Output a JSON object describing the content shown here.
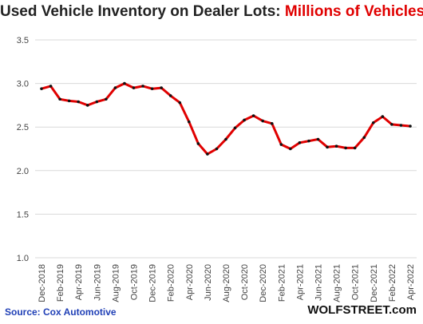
{
  "title_main": "Used Vehicle Inventory on Dealer Lots: ",
  "title_accent": "Millions  of Vehicles",
  "source": "Source: Cox Automotive",
  "brand": "WOLFSTREET.com",
  "colors": {
    "line": "#e00000",
    "marker": "#111111",
    "accent": "#e00000",
    "source": "#1f3fb6",
    "grid": "#d9d9d9"
  },
  "chart_data": {
    "type": "line",
    "title": "Used Vehicle Inventory on Dealer Lots: Millions  of Vehicles",
    "xlabel": "",
    "ylabel": "",
    "ylim": [
      1.0,
      3.5
    ],
    "yticks": [
      "1.0",
      "1.5",
      "2.0",
      "2.5",
      "3.0",
      "3.5"
    ],
    "grid": "horizontal",
    "x_tick_labels": [
      "Dec-2018",
      "Feb-2019",
      "Apr-2019",
      "Jun-2019",
      "Aug-2019",
      "Oct-2019",
      "Dec-2019",
      "Feb-2020",
      "Apr-2020",
      "Jun-2020",
      "Aug-2020",
      "Oct-2020",
      "Dec-2020",
      "Feb-2021",
      "Apr-2021",
      "Jun-2021",
      "Aug-2021",
      "Oct-2021",
      "Dec-2021",
      "Feb-2022",
      "Apr-2022"
    ],
    "x": [
      "Dec-2018",
      "Jan-2019",
      "Feb-2019",
      "Mar-2019",
      "Apr-2019",
      "May-2019",
      "Jun-2019",
      "Jul-2019",
      "Aug-2019",
      "Sep-2019",
      "Oct-2019",
      "Nov-2019",
      "Dec-2019",
      "Jan-2020",
      "Feb-2020",
      "Mar-2020",
      "Apr-2020",
      "May-2020",
      "Jun-2020",
      "Jul-2020",
      "Aug-2020",
      "Sep-2020",
      "Oct-2020",
      "Nov-2020",
      "Dec-2020",
      "Jan-2021",
      "Feb-2021",
      "Mar-2021",
      "Apr-2021",
      "May-2021",
      "Jun-2021",
      "Jul-2021",
      "Aug-2021",
      "Sep-2021",
      "Oct-2021",
      "Nov-2021",
      "Dec-2021",
      "Jan-2022",
      "Feb-2022",
      "Mar-2022",
      "Apr-2022"
    ],
    "series": [
      {
        "values": [
          2.94,
          2.97,
          2.82,
          2.8,
          2.79,
          2.75,
          2.79,
          2.82,
          2.95,
          3.0,
          2.95,
          2.97,
          2.94,
          2.95,
          2.86,
          2.78,
          2.56,
          2.31,
          2.19,
          2.25,
          2.36,
          2.49,
          2.58,
          2.63,
          2.57,
          2.54,
          2.3,
          2.25,
          2.32,
          2.34,
          2.36,
          2.27,
          2.28,
          2.26,
          2.26,
          2.38,
          2.55,
          2.62,
          2.53,
          2.52,
          2.51
        ]
      }
    ]
  }
}
